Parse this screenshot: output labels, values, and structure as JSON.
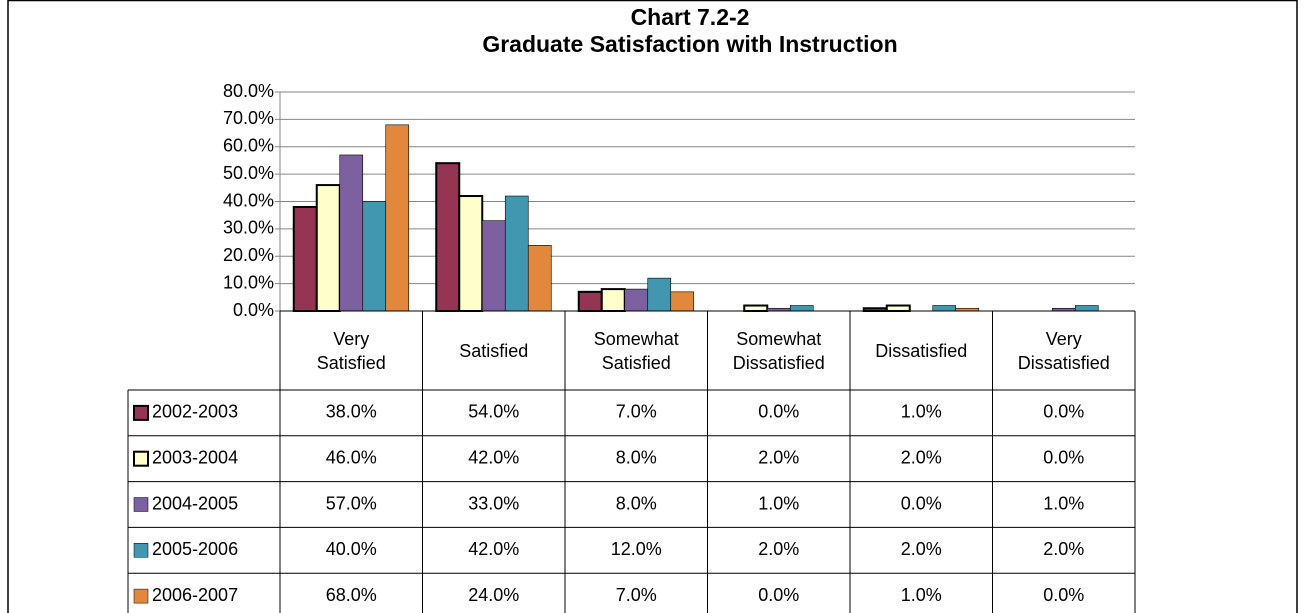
{
  "chart_data": {
    "type": "bar",
    "title": "Chart 7.2-2",
    "subtitle": "Graduate Satisfaction with Instruction",
    "categories": [
      "Very Satisfied",
      "Satisfied",
      "Somewhat Satisfied",
      "Somewhat Dissatisfied",
      "Dissatisfied",
      "Very Dissatisfied"
    ],
    "series": [
      {
        "name": "2002-2003",
        "color": "#953553",
        "values": [
          38,
          54,
          7,
          0,
          1,
          0
        ],
        "value_labels": [
          "38.0%",
          "54.0%",
          "7.0%",
          "0.0%",
          "1.0%",
          "0.0%"
        ]
      },
      {
        "name": "2003-2004",
        "color": "#FFFFCC",
        "values": [
          46,
          42,
          8,
          2,
          2,
          0
        ],
        "value_labels": [
          "46.0%",
          "42.0%",
          "8.0%",
          "2.0%",
          "2.0%",
          "0.0%"
        ]
      },
      {
        "name": "2004-2005",
        "color": "#7D60A0",
        "values": [
          57,
          33,
          8,
          1,
          0,
          1
        ],
        "value_labels": [
          "57.0%",
          "33.0%",
          "8.0%",
          "1.0%",
          "0.0%",
          "1.0%"
        ]
      },
      {
        "name": "2005-2006",
        "color": "#4197B0",
        "values": [
          40,
          42,
          12,
          2,
          2,
          2
        ],
        "value_labels": [
          "40.0%",
          "42.0%",
          "12.0%",
          "2.0%",
          "2.0%",
          "2.0%"
        ]
      },
      {
        "name": "2006-2007",
        "color": "#E2883C",
        "values": [
          68,
          24,
          7,
          0,
          1,
          0
        ],
        "value_labels": [
          "68.0%",
          "24.0%",
          "7.0%",
          "0.0%",
          "1.0%",
          "0.0%"
        ]
      }
    ],
    "ylim": [
      0,
      80
    ],
    "yticks": [
      {
        "value": 0,
        "label": "0.0%"
      },
      {
        "value": 10,
        "label": "10.0%"
      },
      {
        "value": 20,
        "label": "20.0%"
      },
      {
        "value": 30,
        "label": "30.0%"
      },
      {
        "value": 40,
        "label": "40.0%"
      },
      {
        "value": 50,
        "label": "50.0%"
      },
      {
        "value": 60,
        "label": "60.0%"
      },
      {
        "value": 70,
        "label": "70.0%"
      },
      {
        "value": 80,
        "label": "80.0%"
      }
    ],
    "grid": true
  }
}
